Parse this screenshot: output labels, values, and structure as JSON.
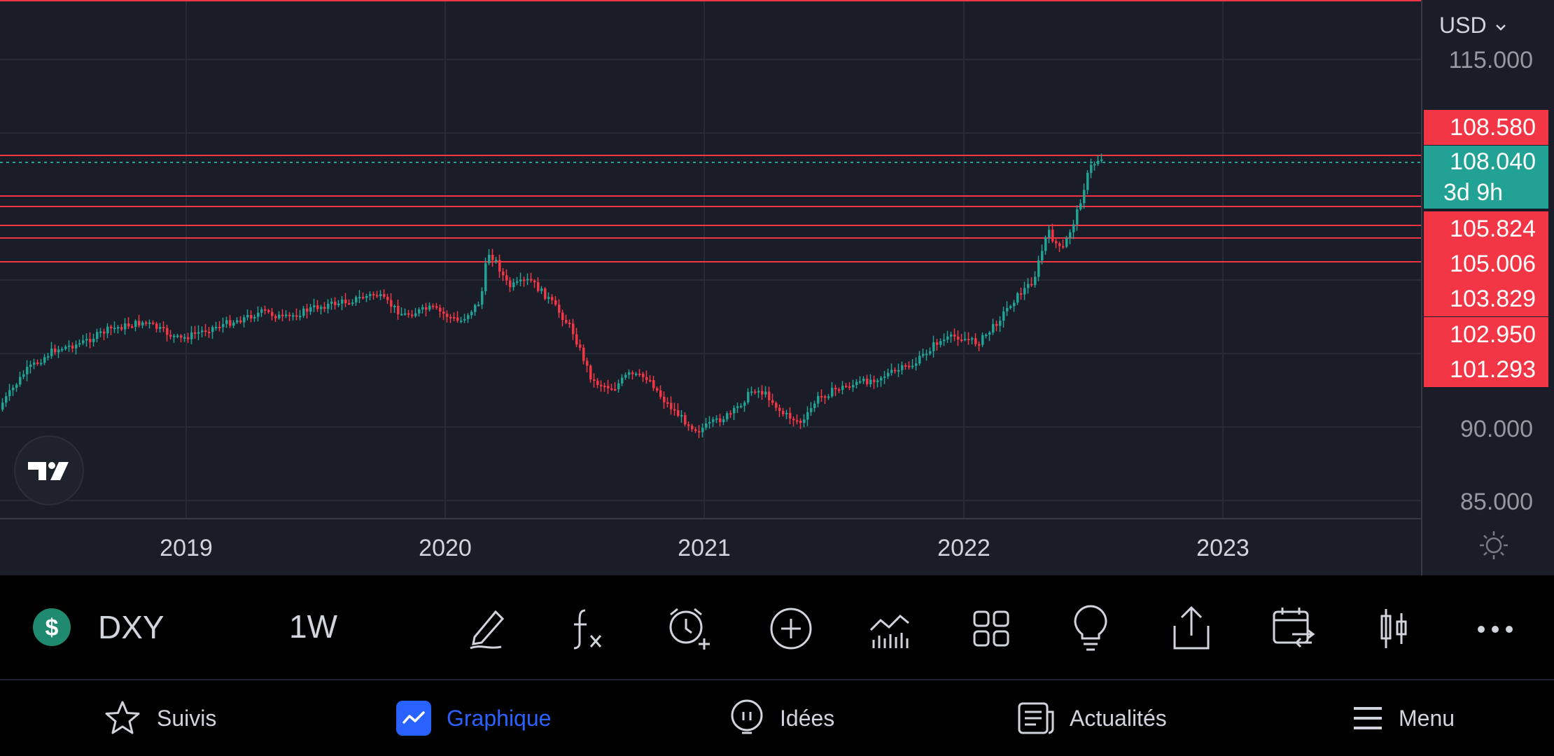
{
  "chart": {
    "symbol": "DXY",
    "interval": "1W",
    "currency": "USD",
    "currency_chevron": "chevron-down-icon",
    "last_price": "108.040",
    "countdown": "3d 9h",
    "price_axis": [
      "115.000",
      "90.000",
      "85.000"
    ],
    "level_tags": [
      "108.580",
      "105.824",
      "105.006",
      "103.829",
      "102.950",
      "101.293"
    ],
    "time_axis": [
      "2019",
      "2020",
      "2021",
      "2022",
      "2023"
    ],
    "colors": {
      "up": "#22a295",
      "down": "#f23645",
      "background": "#1a1d27",
      "accent": "#2962ff"
    }
  },
  "toolbar": {
    "icons": [
      "brush-icon",
      "function-icon",
      "alarm-add-icon",
      "add-circle-icon",
      "indicators-icon",
      "layout-grid-icon",
      "lightbulb-icon",
      "share-icon",
      "calendar-compare-icon",
      "candles-icon",
      "more-icon"
    ]
  },
  "nav": {
    "watchlist": "Suivis",
    "chart": "Graphique",
    "ideas": "Idées",
    "news": "Actualités",
    "menu": "Menu"
  }
}
